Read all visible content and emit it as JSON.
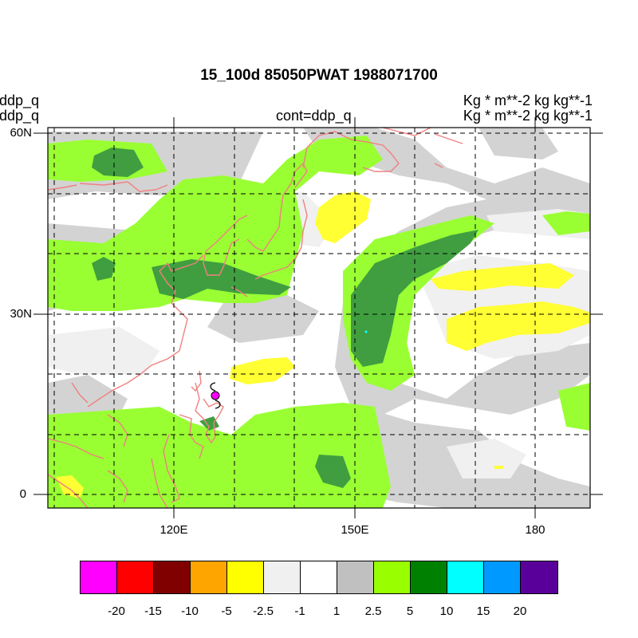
{
  "header": {
    "title": "15_100d 85050PWAT  1988071700",
    "left_line1": "ddp_q",
    "left_line2": "ddp_q",
    "center": "cont=ddp_q",
    "right_line1": "Kg  * m**-2 kg kg**-1",
    "right_line2": "Kg  * m**-2 kg kg**-1"
  },
  "axes": {
    "lat_labels": [
      "60N",
      "30N",
      "0"
    ],
    "lon_labels": [
      "120E",
      "150E",
      "180"
    ]
  },
  "colorbar": {
    "colors": [
      "#ff00ff",
      "#ff0000",
      "#800000",
      "#ffa500",
      "#ffff00",
      "#f0f0f0",
      "#ffffff",
      "#c0c0c0",
      "#99ff00",
      "#008000",
      "#00ffff",
      "#0099ff",
      "#5a009a"
    ],
    "labels": [
      "-20",
      "-15",
      "-10",
      "-5",
      "-2.5",
      "-1",
      "1",
      "2.5",
      "5",
      "10",
      "15",
      "20"
    ]
  },
  "map_colors": {
    "ocean": "#ffffff",
    "light_grey": "#f0f0f0",
    "grey": "#d3d3d3",
    "green_light": "#99ff33",
    "green_dark": "#409e40",
    "yellow": "#ffff33",
    "coast": "#f08080",
    "grid": "#000000",
    "typhoon": "#ff00ff",
    "center_marker": "#00ffff"
  }
}
